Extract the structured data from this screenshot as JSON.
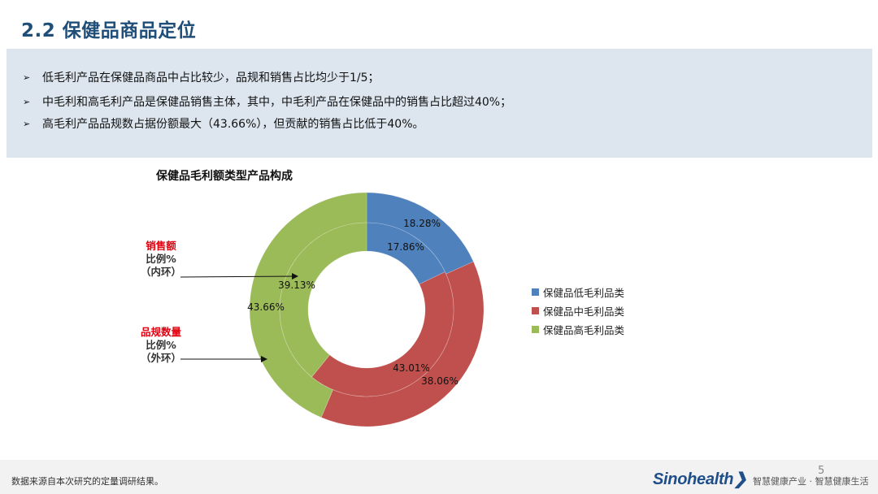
{
  "header": {
    "title": "2.2 保健品商品定位"
  },
  "summary": {
    "bullet_mark": "➢",
    "points": [
      "低毛利产品在保健品商品中占比较少，品规和销售占比均少于1/5；",
      "中毛利和高毛利产品是保健品销售主体，其中，中毛利产品在保健品中的销售占比超过40%；",
      "高毛利产品品规数占据份额最大（43.66%），但贡献的销售占比低于40%。"
    ]
  },
  "chart_data": {
    "type": "pie",
    "subtype": "double-donut",
    "title": "保健品毛利额类型产品构成",
    "categories": [
      "保健品低毛利品类",
      "保健品中毛利品类",
      "保健品高毛利品类"
    ],
    "colors": [
      "#4f81bd",
      "#c0504d",
      "#9bbb59"
    ],
    "series": [
      {
        "ring": "inner",
        "values": [
          17.86,
          43.01,
          39.13
        ],
        "labels": [
          "17.86%",
          "43.01%",
          "39.13%"
        ]
      },
      {
        "ring": "outer",
        "values": [
          18.28,
          38.06,
          43.66
        ],
        "labels": [
          "18.28%",
          "38.06%",
          "43.66%"
        ]
      }
    ],
    "legend_position": "right"
  },
  "annotations": {
    "sales": {
      "line1": "销售额",
      "line2": "比例%",
      "line3": "（内环）"
    },
    "sku": {
      "line1": "品规数量",
      "line2": "比例%",
      "line3": "（外环）"
    }
  },
  "footer": {
    "source": "数据来源自本次研究的定量调研结果。",
    "brand": "Sinohealth",
    "tagline": "智慧健康产业 · 智慧健康生活",
    "page_number": "5"
  }
}
